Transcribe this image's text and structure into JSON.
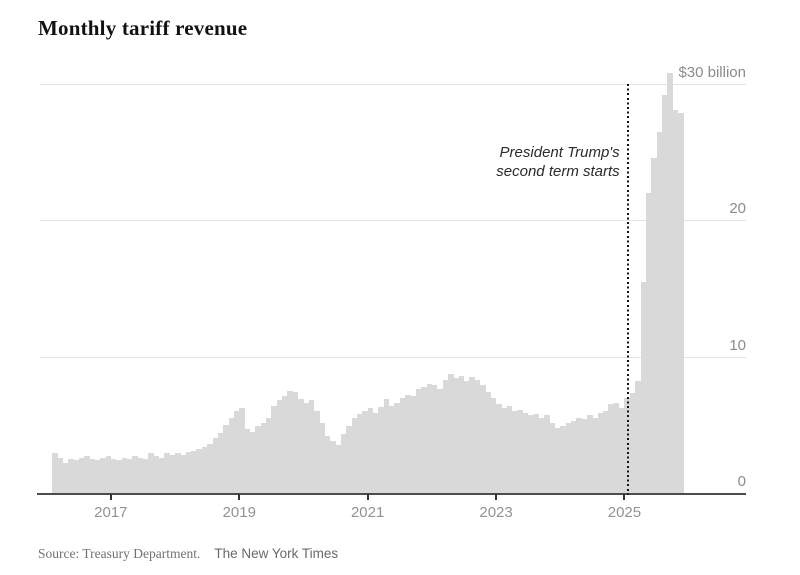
{
  "title": "Monthly tariff revenue",
  "source": {
    "label": "Source: Treasury Department.",
    "credit": "The New York Times"
  },
  "colors": {
    "bar": "#d9d9d9",
    "gridline": "#e4e4e4",
    "baseline": "#4d4d4d",
    "tick_label": "#929292",
    "marker_line": "#131313",
    "annotation_text": "#2b2b2b",
    "title_text": "#121212"
  },
  "chart_data": {
    "type": "bar",
    "title": "Monthly tariff revenue",
    "unit": "billions of US dollars per month",
    "start_month": "2016-02",
    "end_month": "2025-11",
    "ylim": [
      0,
      31
    ],
    "grid": true,
    "y_ticks": [
      {
        "value": 30,
        "label": "$30 billion"
      },
      {
        "value": 20,
        "label": "20"
      },
      {
        "value": 10,
        "label": "10"
      },
      {
        "value": 0,
        "label": "0"
      }
    ],
    "x_ticks": [
      {
        "label": "2017",
        "month_index": 11
      },
      {
        "label": "2019",
        "month_index": 35
      },
      {
        "label": "2021",
        "month_index": 59
      },
      {
        "label": "2023",
        "month_index": 83
      },
      {
        "label": "2025",
        "month_index": 107
      }
    ],
    "annotation": {
      "lines": [
        "President Trump's",
        "second term starts"
      ],
      "month": "2025-01-20",
      "month_index": 107.6
    },
    "values": [
      2.9,
      2.6,
      2.2,
      2.5,
      2.4,
      2.6,
      2.7,
      2.5,
      2.4,
      2.6,
      2.7,
      2.5,
      2.4,
      2.6,
      2.5,
      2.7,
      2.6,
      2.5,
      2.9,
      2.7,
      2.6,
      2.9,
      2.8,
      2.9,
      2.8,
      3.0,
      3.1,
      3.2,
      3.4,
      3.6,
      4.0,
      4.4,
      5.0,
      5.5,
      6.0,
      6.2,
      4.7,
      4.5,
      4.9,
      5.1,
      5.5,
      6.4,
      6.8,
      7.1,
      7.5,
      7.4,
      6.9,
      6.6,
      6.8,
      6.0,
      5.1,
      4.2,
      3.8,
      3.5,
      4.3,
      4.9,
      5.5,
      5.8,
      6.0,
      6.2,
      5.9,
      6.3,
      6.9,
      6.4,
      6.6,
      7.0,
      7.2,
      7.1,
      7.6,
      7.8,
      8.0,
      7.9,
      7.6,
      8.3,
      8.7,
      8.4,
      8.6,
      8.2,
      8.5,
      8.3,
      7.9,
      7.4,
      7.0,
      6.5,
      6.2,
      6.4,
      6.0,
      6.1,
      5.9,
      5.7,
      5.8,
      5.5,
      5.7,
      5.1,
      4.8,
      4.9,
      5.1,
      5.3,
      5.5,
      5.4,
      5.7,
      5.5,
      5.9,
      6.0,
      6.5,
      6.6,
      6.2,
      7.0,
      7.3,
      8.2,
      15.5,
      22.0,
      24.6,
      26.5,
      29.2,
      30.8,
      28.1,
      27.9
    ]
  }
}
